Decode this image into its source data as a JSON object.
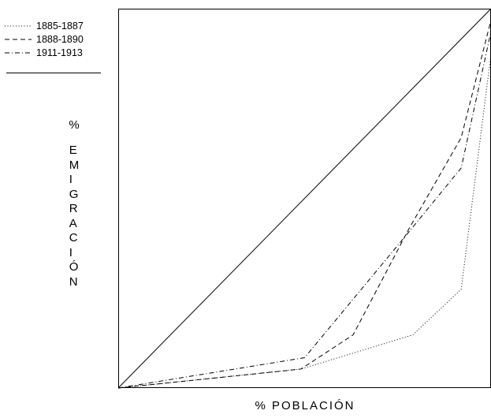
{
  "chart_data": {
    "type": "line",
    "title": "",
    "xlabel": "% POBLACIÓN",
    "ylabel_prefix": "%",
    "ylabel_word": "EMIGRACIÓN",
    "xlim": [
      0,
      100
    ],
    "ylim": [
      0,
      100
    ],
    "grid": false,
    "legend_position": "top-left",
    "diagonal": {
      "x": [
        0,
        100
      ],
      "y": [
        0,
        100
      ]
    },
    "series": [
      {
        "name": "1885-1887",
        "style": "dotted",
        "x": [
          0,
          49,
          79,
          92,
          100
        ],
        "y": [
          0,
          5,
          14,
          26,
          88
        ]
      },
      {
        "name": "1888-1890",
        "style": "dashed",
        "x": [
          0,
          49,
          63,
          78,
          92,
          100
        ],
        "y": [
          0,
          5,
          14,
          42,
          66,
          97
        ]
      },
      {
        "name": "1911-1913",
        "style": "dashdot",
        "x": [
          0,
          50,
          77,
          92,
          100
        ],
        "y": [
          0,
          8,
          40,
          58,
          94
        ]
      }
    ],
    "line_color": "#000000"
  }
}
